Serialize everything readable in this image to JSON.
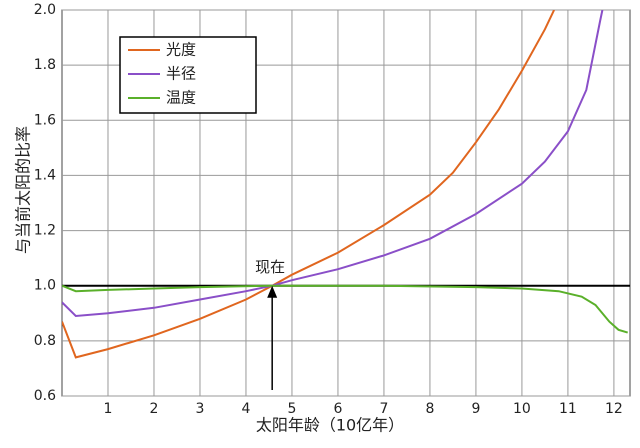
{
  "chart_data": {
    "type": "line",
    "x_label": "太阳年龄（10亿年）",
    "y_label": "与当前太阳的比率",
    "xlim": [
      0,
      12.35
    ],
    "ylim": [
      0.6,
      2.0
    ],
    "xticks": [
      1,
      2,
      3,
      4,
      5,
      6,
      7,
      8,
      9,
      10,
      11,
      12
    ],
    "yticks": [
      0.6,
      0.8,
      {
        "value": 1,
        "label": "1.0"
      },
      1.2,
      1.4,
      1.6,
      1.8,
      {
        "value": 2,
        "label": "2.0"
      }
    ],
    "grid": true,
    "reference_line": 1,
    "annotation": {
      "text": "现在",
      "x": 4.57,
      "y": 1
    },
    "series": [
      {
        "name": "光度",
        "color": "#e0661f",
        "x": [
          0,
          0.3,
          1,
          2,
          3,
          4,
          4.57,
          5,
          6,
          7,
          8,
          8.5,
          9,
          9.5,
          10,
          10.5,
          10.7
        ],
        "values": [
          0.87,
          0.74,
          0.77,
          0.82,
          0.88,
          0.95,
          1.0,
          1.04,
          1.12,
          1.22,
          1.33,
          1.41,
          1.52,
          1.64,
          1.78,
          1.93,
          2.0
        ]
      },
      {
        "name": "半径",
        "color": "#8a4fc8",
        "x": [
          0,
          0.3,
          1,
          2,
          3,
          4,
          4.57,
          5,
          6,
          7,
          8,
          9,
          10,
          10.5,
          11,
          11.4,
          11.7,
          11.75
        ],
        "values": [
          0.94,
          0.89,
          0.9,
          0.92,
          0.95,
          0.98,
          1.0,
          1.02,
          1.06,
          1.11,
          1.17,
          1.26,
          1.37,
          1.45,
          1.56,
          1.71,
          1.96,
          2.0
        ]
      },
      {
        "name": "温度",
        "color": "#5ab02a",
        "x": [
          0,
          0.3,
          1,
          2,
          3,
          4.57,
          7,
          9,
          10,
          10.8,
          11.3,
          11.6,
          11.9,
          12.1,
          12.3
        ],
        "values": [
          1.0,
          0.98,
          0.985,
          0.99,
          0.995,
          1.0,
          1.0,
          0.995,
          0.99,
          0.98,
          0.96,
          0.93,
          0.87,
          0.84,
          0.83
        ]
      }
    ]
  }
}
